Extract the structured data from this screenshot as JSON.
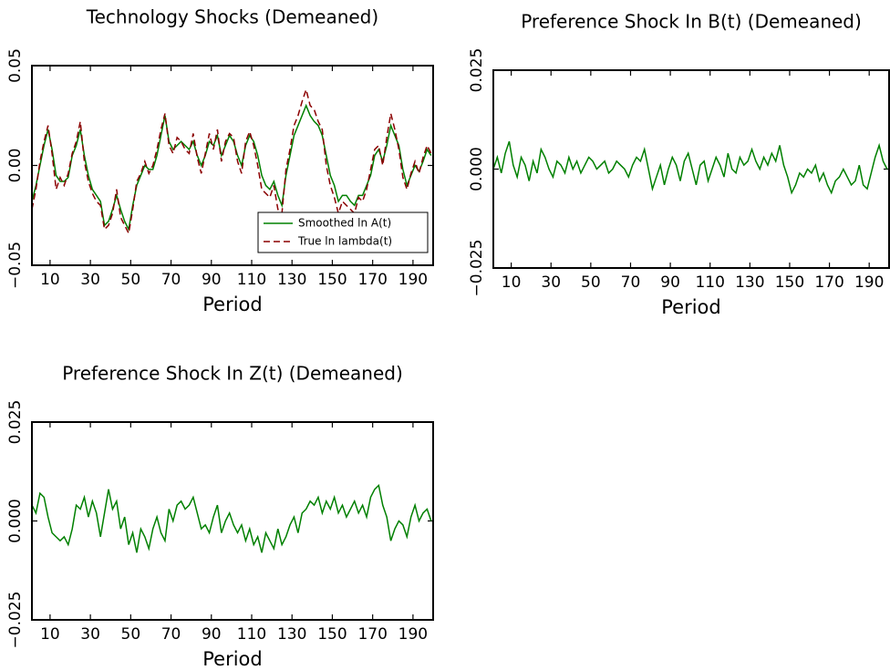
{
  "chart_data": [
    {
      "type": "line",
      "title": "Technology Shocks (Demeaned)",
      "xlabel": "Period",
      "xlim": [
        1,
        200
      ],
      "xticks": [
        10,
        30,
        50,
        70,
        90,
        110,
        130,
        150,
        170,
        190
      ],
      "ylim": [
        -0.05,
        0.05
      ],
      "yticks": [
        {
          "value": -0.05,
          "label": "−0.05"
        },
        {
          "value": 0,
          "label": "0.00"
        },
        0.05
      ],
      "legend": "lower right",
      "x": [
        1,
        3,
        5,
        7,
        9,
        11,
        13,
        15,
        17,
        19,
        21,
        23,
        25,
        27,
        29,
        31,
        33,
        35,
        37,
        39,
        41,
        43,
        45,
        47,
        49,
        51,
        53,
        55,
        57,
        59,
        61,
        63,
        65,
        67,
        69,
        71,
        73,
        75,
        77,
        79,
        81,
        83,
        85,
        87,
        89,
        91,
        93,
        95,
        97,
        99,
        101,
        103,
        105,
        107,
        109,
        111,
        113,
        115,
        117,
        119,
        121,
        123,
        125,
        127,
        129,
        131,
        133,
        135,
        137,
        139,
        141,
        143,
        145,
        147,
        149,
        151,
        153,
        155,
        157,
        159,
        161,
        163,
        165,
        167,
        169,
        171,
        173,
        175,
        177,
        179,
        181,
        183,
        185,
        187,
        189,
        191,
        193,
        195,
        197,
        199
      ],
      "series": [
        {
          "name": "Smoothed ln A(t)",
          "color": "#008000",
          "linestyle": "solid",
          "values": [
            -0.018,
            -0.01,
            0.0,
            0.01,
            0.018,
            0.008,
            -0.005,
            -0.008,
            -0.008,
            -0.006,
            0.005,
            0.01,
            0.018,
            0.005,
            -0.005,
            -0.012,
            -0.015,
            -0.018,
            -0.03,
            -0.028,
            -0.022,
            -0.015,
            -0.022,
            -0.028,
            -0.032,
            -0.02,
            -0.01,
            -0.005,
            0.0,
            -0.002,
            -0.002,
            0.005,
            0.015,
            0.025,
            0.012,
            0.008,
            0.01,
            0.012,
            0.01,
            0.008,
            0.012,
            0.005,
            0.0,
            0.005,
            0.012,
            0.01,
            0.015,
            0.005,
            0.01,
            0.015,
            0.012,
            0.005,
            0.0,
            0.01,
            0.015,
            0.012,
            0.005,
            -0.005,
            -0.01,
            -0.012,
            -0.008,
            -0.015,
            -0.02,
            -0.005,
            0.005,
            0.015,
            0.02,
            0.025,
            0.03,
            0.025,
            0.022,
            0.02,
            0.015,
            0.005,
            -0.005,
            -0.01,
            -0.018,
            -0.015,
            -0.015,
            -0.018,
            -0.02,
            -0.015,
            -0.015,
            -0.01,
            -0.005,
            0.005,
            0.008,
            0.002,
            0.01,
            0.02,
            0.015,
            0.01,
            -0.002,
            -0.01,
            -0.005,
            0.0,
            -0.003,
            0.002,
            0.008,
            0.005
          ]
        },
        {
          "name": "True ln lambda(t)",
          "color": "#8b0000",
          "linestyle": "dashed",
          "values": [
            -0.022,
            -0.012,
            0.002,
            0.012,
            0.02,
            0.006,
            -0.012,
            -0.006,
            -0.01,
            -0.004,
            0.006,
            0.012,
            0.022,
            0.002,
            -0.008,
            -0.014,
            -0.018,
            -0.02,
            -0.032,
            -0.03,
            -0.024,
            -0.012,
            -0.026,
            -0.03,
            -0.034,
            -0.022,
            -0.008,
            -0.004,
            0.002,
            -0.004,
            0.0,
            0.008,
            0.018,
            0.026,
            0.01,
            0.006,
            0.014,
            0.012,
            0.008,
            0.006,
            0.016,
            0.004,
            -0.004,
            0.006,
            0.016,
            0.008,
            0.018,
            0.002,
            0.012,
            0.016,
            0.014,
            0.002,
            -0.004,
            0.012,
            0.017,
            0.01,
            0.0,
            -0.012,
            -0.014,
            -0.016,
            -0.01,
            -0.022,
            -0.024,
            -0.002,
            0.008,
            0.02,
            0.025,
            0.032,
            0.038,
            0.03,
            0.028,
            0.022,
            0.018,
            0.0,
            -0.01,
            -0.016,
            -0.024,
            -0.018,
            -0.02,
            -0.022,
            -0.024,
            -0.016,
            -0.018,
            -0.012,
            -0.002,
            0.008,
            0.01,
            0.0,
            0.014,
            0.026,
            0.018,
            0.008,
            -0.006,
            -0.012,
            -0.004,
            0.002,
            -0.004,
            0.004,
            0.01,
            0.006
          ]
        }
      ]
    },
    {
      "type": "line",
      "title": "Preference Shock In B(t) (Demeaned)",
      "xlabel": "Period",
      "xlim": [
        1,
        200
      ],
      "xticks": [
        10,
        30,
        50,
        70,
        90,
        110,
        130,
        150,
        170,
        190
      ],
      "ylim": [
        -0.025,
        0.025
      ],
      "yticks": [
        {
          "value": -0.025,
          "label": "−0.025"
        },
        {
          "value": 0,
          "label": "0.000"
        },
        0.025
      ],
      "x": [
        1,
        3,
        5,
        7,
        9,
        11,
        13,
        15,
        17,
        19,
        21,
        23,
        25,
        27,
        29,
        31,
        33,
        35,
        37,
        39,
        41,
        43,
        45,
        47,
        49,
        51,
        53,
        55,
        57,
        59,
        61,
        63,
        65,
        67,
        69,
        71,
        73,
        75,
        77,
        79,
        81,
        83,
        85,
        87,
        89,
        91,
        93,
        95,
        97,
        99,
        101,
        103,
        105,
        107,
        109,
        111,
        113,
        115,
        117,
        119,
        121,
        123,
        125,
        127,
        129,
        131,
        133,
        135,
        137,
        139,
        141,
        143,
        145,
        147,
        149,
        151,
        153,
        155,
        157,
        159,
        161,
        163,
        165,
        167,
        169,
        171,
        173,
        175,
        177,
        179,
        181,
        183,
        185,
        187,
        189,
        191,
        193,
        195,
        197,
        199
      ],
      "series": [
        {
          "color": "#008000",
          "linestyle": "solid",
          "values": [
            0.0,
            0.003,
            -0.001,
            0.004,
            0.007,
            0.001,
            -0.002,
            0.003,
            0.001,
            -0.003,
            0.002,
            -0.001,
            0.005,
            0.003,
            0.0,
            -0.002,
            0.002,
            0.001,
            -0.001,
            0.003,
            0.0,
            0.002,
            -0.001,
            0.001,
            0.003,
            0.002,
            0.0,
            0.001,
            0.002,
            -0.001,
            0.0,
            0.002,
            0.001,
            0.0,
            -0.002,
            0.001,
            0.003,
            0.002,
            0.005,
            0.0,
            -0.005,
            -0.002,
            0.001,
            -0.004,
            0.0,
            0.003,
            0.001,
            -0.003,
            0.002,
            0.004,
            0.0,
            -0.004,
            0.001,
            0.002,
            -0.003,
            0.0,
            0.003,
            0.001,
            -0.002,
            0.004,
            0.0,
            -0.001,
            0.003,
            0.001,
            0.002,
            0.005,
            0.002,
            0.0,
            0.003,
            0.001,
            0.004,
            0.002,
            0.006,
            0.001,
            -0.002,
            -0.006,
            -0.004,
            -0.001,
            -0.002,
            0.0,
            -0.001,
            0.001,
            -0.003,
            -0.001,
            -0.004,
            -0.006,
            -0.003,
            -0.002,
            0.0,
            -0.002,
            -0.004,
            -0.003,
            0.001,
            -0.004,
            -0.005,
            -0.001,
            0.003,
            0.006,
            0.002,
            0.0
          ]
        }
      ]
    },
    {
      "type": "line",
      "title": "Preference Shock In Z(t) (Demeaned)",
      "xlabel": "Period",
      "xlim": [
        1,
        200
      ],
      "xticks": [
        10,
        30,
        50,
        70,
        90,
        110,
        130,
        150,
        170,
        190
      ],
      "ylim": [
        -0.025,
        0.025
      ],
      "yticks": [
        {
          "value": -0.025,
          "label": "−0.025"
        },
        {
          "value": 0,
          "label": "0.000"
        },
        0.025
      ],
      "x": [
        1,
        3,
        5,
        7,
        9,
        11,
        13,
        15,
        17,
        19,
        21,
        23,
        25,
        27,
        29,
        31,
        33,
        35,
        37,
        39,
        41,
        43,
        45,
        47,
        49,
        51,
        53,
        55,
        57,
        59,
        61,
        63,
        65,
        67,
        69,
        71,
        73,
        75,
        77,
        79,
        81,
        83,
        85,
        87,
        89,
        91,
        93,
        95,
        97,
        99,
        101,
        103,
        105,
        107,
        109,
        111,
        113,
        115,
        117,
        119,
        121,
        123,
        125,
        127,
        129,
        131,
        133,
        135,
        137,
        139,
        141,
        143,
        145,
        147,
        149,
        151,
        153,
        155,
        157,
        159,
        161,
        163,
        165,
        167,
        169,
        171,
        173,
        175,
        177,
        179,
        181,
        183,
        185,
        187,
        189,
        191,
        193,
        195,
        197,
        199
      ],
      "series": [
        {
          "color": "#008000",
          "linestyle": "solid",
          "values": [
            0.004,
            0.002,
            0.007,
            0.006,
            0.001,
            -0.003,
            -0.004,
            -0.005,
            -0.004,
            -0.006,
            -0.002,
            0.004,
            0.003,
            0.006,
            0.001,
            0.005,
            0.002,
            -0.004,
            0.002,
            0.008,
            0.003,
            0.005,
            -0.002,
            0.001,
            -0.006,
            -0.003,
            -0.008,
            -0.002,
            -0.004,
            -0.007,
            -0.002,
            0.001,
            -0.003,
            -0.005,
            0.003,
            0.0,
            0.004,
            0.005,
            0.003,
            0.004,
            0.006,
            0.002,
            -0.002,
            -0.001,
            -0.003,
            0.001,
            0.004,
            -0.003,
            0.0,
            0.002,
            -0.001,
            -0.003,
            -0.001,
            -0.005,
            -0.002,
            -0.006,
            -0.004,
            -0.008,
            -0.003,
            -0.005,
            -0.007,
            -0.002,
            -0.006,
            -0.004,
            -0.001,
            0.001,
            -0.003,
            0.002,
            0.003,
            0.005,
            0.004,
            0.006,
            0.002,
            0.005,
            0.003,
            0.006,
            0.002,
            0.004,
            0.001,
            0.003,
            0.005,
            0.002,
            0.004,
            0.001,
            0.006,
            0.008,
            0.009,
            0.004,
            0.001,
            -0.005,
            -0.002,
            0.0,
            -0.001,
            -0.004,
            0.001,
            0.004,
            0.0,
            0.002,
            0.003,
            0.0
          ]
        }
      ]
    }
  ]
}
